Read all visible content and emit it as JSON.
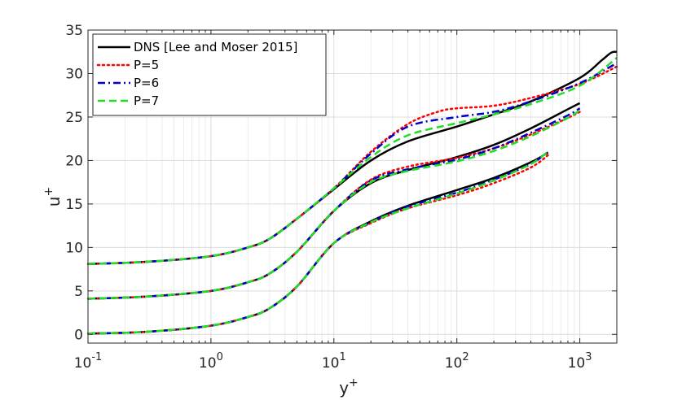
{
  "chart_data": {
    "type": "line",
    "x_scale": "log",
    "xlim": [
      0.1,
      2000
    ],
    "ylim": [
      -1,
      35
    ],
    "grid": true,
    "xlabel": "y",
    "xlabel_sup": "+",
    "ylabel": "u",
    "ylabel_sup": "+",
    "legend_position": "top-left",
    "x_ticks": [
      {
        "value": 0.1,
        "base": "10",
        "exp": "-1"
      },
      {
        "value": 1,
        "base": "10",
        "exp": "0"
      },
      {
        "value": 10,
        "base": "10",
        "exp": "1"
      },
      {
        "value": 100,
        "base": "10",
        "exp": "2"
      },
      {
        "value": 1000,
        "base": "10",
        "exp": "3"
      }
    ],
    "y_ticks": [
      0,
      5,
      10,
      15,
      20,
      25,
      30,
      35
    ],
    "series": [
      {
        "name": "DNS [Lee and Moser 2015]",
        "color": "#000000",
        "dash": "solid",
        "curves": [
          [
            [
              0.1,
              0.1
            ],
            [
              0.3,
              0.3
            ],
            [
              1,
              1.0
            ],
            [
              2,
              2.0
            ],
            [
              3,
              3.0
            ],
            [
              5,
              5.5
            ],
            [
              10,
              10.5
            ],
            [
              20,
              13.0
            ],
            [
              40,
              14.8
            ],
            [
              100,
              16.6
            ],
            [
              200,
              18.0
            ],
            [
              400,
              19.8
            ],
            [
              550,
              20.9
            ]
          ],
          [
            [
              0.1,
              4.1
            ],
            [
              0.3,
              4.35
            ],
            [
              1,
              5.0
            ],
            [
              2,
              6.0
            ],
            [
              3,
              7.0
            ],
            [
              5,
              9.5
            ],
            [
              10,
              14.2
            ],
            [
              20,
              17.4
            ],
            [
              40,
              18.9
            ],
            [
              100,
              20.4
            ],
            [
              200,
              21.8
            ],
            [
              400,
              23.7
            ],
            [
              800,
              25.9
            ],
            [
              1000,
              26.6
            ]
          ],
          [
            [
              0.1,
              8.1
            ],
            [
              0.3,
              8.35
            ],
            [
              1,
              9.0
            ],
            [
              2,
              10.0
            ],
            [
              3,
              11.0
            ],
            [
              5,
              13.3
            ],
            [
              10,
              16.7
            ],
            [
              20,
              20.0
            ],
            [
              40,
              22.2
            ],
            [
              100,
              23.9
            ],
            [
              200,
              25.3
            ],
            [
              400,
              26.8
            ],
            [
              1000,
              29.5
            ],
            [
              1500,
              31.5
            ],
            [
              1800,
              32.4
            ],
            [
              2000,
              32.5
            ]
          ]
        ]
      },
      {
        "name": "P=5",
        "color": "#ff0000",
        "dash": "dotted",
        "curves": [
          [
            [
              0.1,
              0.1
            ],
            [
              0.3,
              0.3
            ],
            [
              1,
              1.0
            ],
            [
              2,
              2.0
            ],
            [
              3,
              3.0
            ],
            [
              5,
              5.5
            ],
            [
              10,
              10.5
            ],
            [
              20,
              12.8
            ],
            [
              40,
              14.5
            ],
            [
              100,
              16.0
            ],
            [
              200,
              17.4
            ],
            [
              400,
              19.2
            ],
            [
              550,
              20.6
            ]
          ],
          [
            [
              0.1,
              4.1
            ],
            [
              0.3,
              4.35
            ],
            [
              1,
              5.0
            ],
            [
              2,
              6.0
            ],
            [
              3,
              7.0
            ],
            [
              5,
              9.5
            ],
            [
              10,
              14.2
            ],
            [
              20,
              17.8
            ],
            [
              40,
              19.3
            ],
            [
              100,
              20.3
            ],
            [
              200,
              21.4
            ],
            [
              400,
              23.0
            ],
            [
              800,
              24.9
            ],
            [
              1000,
              25.6
            ]
          ],
          [
            [
              0.1,
              8.1
            ],
            [
              0.3,
              8.35
            ],
            [
              1,
              9.0
            ],
            [
              2,
              10.0
            ],
            [
              3,
              11.0
            ],
            [
              5,
              13.3
            ],
            [
              10,
              16.8
            ],
            [
              20,
              21.0
            ],
            [
              40,
              24.2
            ],
            [
              70,
              25.6
            ],
            [
              100,
              26.0
            ],
            [
              200,
              26.3
            ],
            [
              400,
              27.2
            ],
            [
              1000,
              28.8
            ],
            [
              2000,
              30.8
            ]
          ]
        ]
      },
      {
        "name": "P=6",
        "color": "#0000cd",
        "dash": "dashdot",
        "curves": [
          [
            [
              0.1,
              0.1
            ],
            [
              0.3,
              0.3
            ],
            [
              1,
              1.0
            ],
            [
              2,
              2.0
            ],
            [
              3,
              3.0
            ],
            [
              5,
              5.5
            ],
            [
              10,
              10.5
            ],
            [
              20,
              12.9
            ],
            [
              40,
              14.7
            ],
            [
              100,
              16.3
            ],
            [
              200,
              17.8
            ],
            [
              400,
              19.6
            ],
            [
              550,
              21.0
            ]
          ],
          [
            [
              0.1,
              4.1
            ],
            [
              0.3,
              4.35
            ],
            [
              1,
              5.0
            ],
            [
              2,
              6.0
            ],
            [
              3,
              7.0
            ],
            [
              5,
              9.5
            ],
            [
              10,
              14.2
            ],
            [
              20,
              17.7
            ],
            [
              40,
              19.0
            ],
            [
              100,
              20.1
            ],
            [
              200,
              21.4
            ],
            [
              400,
              23.2
            ],
            [
              800,
              25.2
            ],
            [
              1000,
              26.0
            ]
          ],
          [
            [
              0.1,
              8.1
            ],
            [
              0.3,
              8.35
            ],
            [
              1,
              9.0
            ],
            [
              2,
              10.0
            ],
            [
              3,
              11.0
            ],
            [
              5,
              13.3
            ],
            [
              10,
              16.8
            ],
            [
              20,
              20.8
            ],
            [
              40,
              23.9
            ],
            [
              100,
              25.0
            ],
            [
              200,
              25.6
            ],
            [
              400,
              26.8
            ],
            [
              1000,
              28.9
            ],
            [
              2000,
              31.2
            ]
          ]
        ]
      },
      {
        "name": "P=7",
        "color": "#22dd22",
        "dash": "dashed",
        "curves": [
          [
            [
              0.1,
              0.1
            ],
            [
              0.3,
              0.3
            ],
            [
              1,
              1.0
            ],
            [
              2,
              2.0
            ],
            [
              3,
              3.0
            ],
            [
              5,
              5.5
            ],
            [
              10,
              10.5
            ],
            [
              20,
              12.9
            ],
            [
              40,
              14.5
            ],
            [
              100,
              16.2
            ],
            [
              200,
              17.7
            ],
            [
              400,
              19.6
            ],
            [
              550,
              21.0
            ]
          ],
          [
            [
              0.1,
              4.1
            ],
            [
              0.3,
              4.35
            ],
            [
              1,
              5.0
            ],
            [
              2,
              6.0
            ],
            [
              3,
              7.0
            ],
            [
              5,
              9.5
            ],
            [
              10,
              14.2
            ],
            [
              20,
              17.5
            ],
            [
              40,
              18.8
            ],
            [
              100,
              19.9
            ],
            [
              200,
              21.1
            ],
            [
              400,
              22.8
            ],
            [
              800,
              24.9
            ],
            [
              1000,
              25.8
            ]
          ],
          [
            [
              0.1,
              8.1
            ],
            [
              0.3,
              8.35
            ],
            [
              1,
              9.0
            ],
            [
              2,
              10.0
            ],
            [
              3,
              11.0
            ],
            [
              5,
              13.3
            ],
            [
              10,
              16.8
            ],
            [
              20,
              20.4
            ],
            [
              40,
              22.9
            ],
            [
              100,
              24.3
            ],
            [
              200,
              25.3
            ],
            [
              400,
              26.5
            ],
            [
              1000,
              28.6
            ],
            [
              2000,
              31.8
            ]
          ]
        ]
      }
    ]
  }
}
